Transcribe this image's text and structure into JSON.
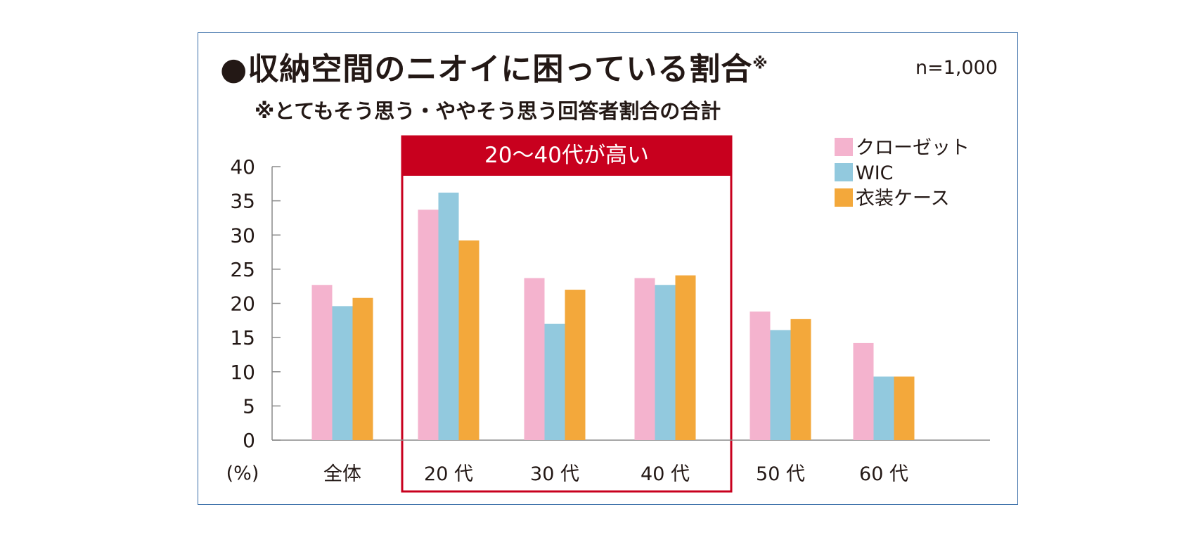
{
  "header": {
    "title": "●収納空間のニオイに困っている割合",
    "title_mark": "※",
    "subtitle": "※とてもそう思う・ややそう思う回答者割合の合計",
    "sample_size": "n=1,000"
  },
  "highlight": {
    "label": "20〜40代が高い",
    "color": "#c8001e"
  },
  "chart_data": {
    "type": "bar",
    "title": "●収納空間のニオイに困っている割合",
    "subtitle": "※とてもそう思う・ややそう思う回答者割合の合計",
    "categories": [
      "全体",
      "20 代",
      "30 代",
      "40 代",
      "50 代",
      "60 代"
    ],
    "series": [
      {
        "name": "クローゼット",
        "color": "#f4b3ce",
        "values": [
          22.7,
          33.7,
          23.7,
          23.7,
          18.8,
          14.2
        ]
      },
      {
        "name": "WIC",
        "color": "#92c9de",
        "values": [
          19.6,
          36.2,
          17.0,
          22.7,
          16.1,
          9.3
        ]
      },
      {
        "name": "衣装ケース",
        "color": "#f3a83b",
        "values": [
          20.8,
          29.2,
          22.0,
          24.1,
          17.7,
          9.3
        ]
      }
    ],
    "ylabel": "(%)",
    "ylim": [
      0,
      40
    ],
    "yticks": [
      0,
      5,
      10,
      15,
      20,
      25,
      30,
      35,
      40
    ],
    "legend_position": "top-right",
    "grid": false
  }
}
